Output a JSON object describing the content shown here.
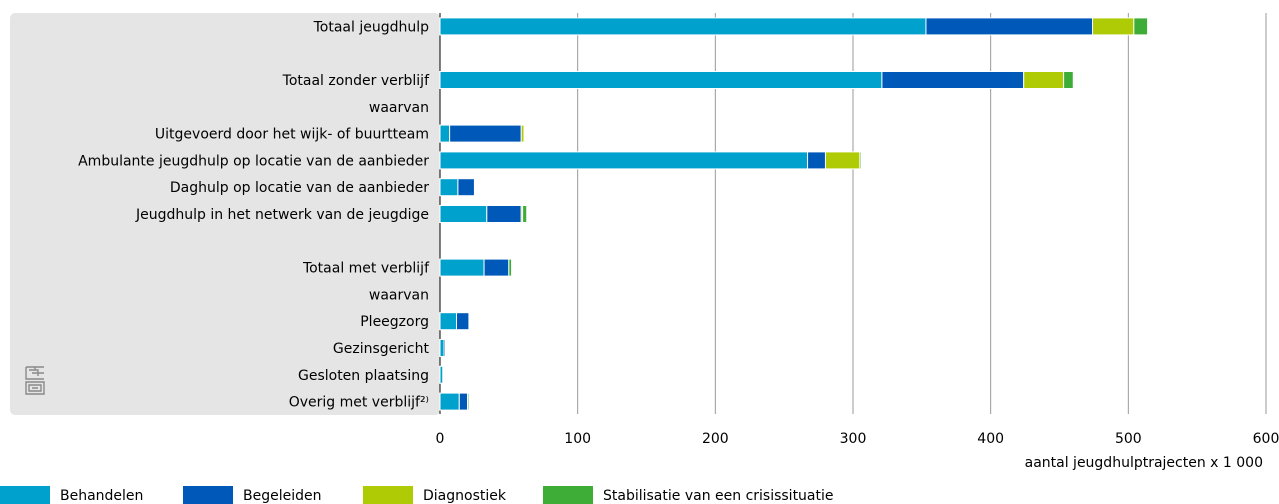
{
  "chart_data": {
    "type": "bar",
    "orientation": "horizontal",
    "stacked": true,
    "title": "",
    "xlabel": "aantal jeugdhulptrajecten x 1 000",
    "ylabel": "",
    "xlim": [
      0,
      600
    ],
    "xticks": [
      "0",
      "100",
      "200",
      "300",
      "400",
      "500",
      "600"
    ],
    "xtick_values": [
      0,
      100,
      200,
      300,
      400,
      500,
      600
    ],
    "grid": true,
    "legend_position": "bottom",
    "categories": [
      "Totaal jeugdhulp",
      "",
      "Totaal zonder verblijf",
      "waarvan",
      "Uitgevoerd door het wijk- of buurtteam",
      "Ambulante jeugdhulp op locatie van de aanbieder",
      "Daghulp op locatie van de aanbieder",
      "Jeugdhulp in het netwerk van de jeugdige",
      "",
      "Totaal met verblijf",
      "waarvan",
      "Pleegzorg",
      "Gezinsgericht",
      "Gesloten plaatsing",
      "Overig met verblijf²⁾"
    ],
    "series": [
      {
        "name": "Behandelen",
        "color": "#00a1cd",
        "values": [
          353,
          0,
          321,
          0,
          7,
          267,
          13,
          34,
          0,
          32,
          0,
          12,
          3,
          2,
          14
        ]
      },
      {
        "name": "Begeleiden",
        "color": "#0058b8",
        "values": [
          121,
          0,
          103,
          0,
          52,
          13,
          12,
          25,
          0,
          18,
          0,
          9,
          1,
          0,
          6
        ]
      },
      {
        "name": "Diagnostiek",
        "color": "#afcb05",
        "values": [
          30,
          0,
          29,
          0,
          2,
          25,
          0,
          1,
          0,
          0,
          0,
          0,
          0,
          0,
          0
        ]
      },
      {
        "name": "Stabilisatie van een crisissituatie",
        "color": "#3ead37",
        "values": [
          10,
          0,
          7,
          0,
          0,
          1,
          0,
          3,
          0,
          2,
          0,
          0,
          0,
          0,
          1
        ]
      }
    ]
  },
  "logo": {
    "text": "cbs"
  }
}
